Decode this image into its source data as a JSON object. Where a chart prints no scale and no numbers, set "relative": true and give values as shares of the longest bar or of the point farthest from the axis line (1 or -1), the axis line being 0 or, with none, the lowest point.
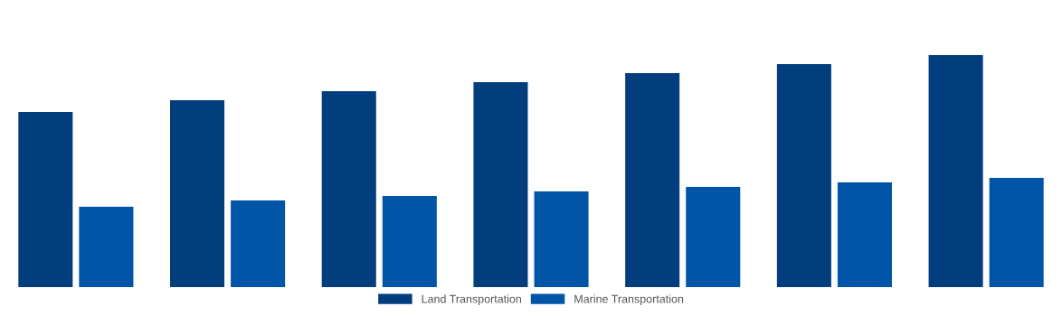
{
  "chart_data": {
    "type": "bar",
    "relative": true,
    "categories": [
      null,
      null,
      null,
      null,
      null,
      null,
      null
    ],
    "series": [
      {
        "name": "Land Transportation",
        "color": "#023d7d",
        "values": [
          0.755,
          0.805,
          0.844,
          0.883,
          0.922,
          0.961,
          1
        ]
      },
      {
        "name": "Marine Transportation",
        "color": "#0055a8",
        "values": [
          0.346,
          0.374,
          0.393,
          0.412,
          0.432,
          0.451,
          0.471
        ]
      }
    ],
    "legend": "bottom",
    "grid": false
  }
}
